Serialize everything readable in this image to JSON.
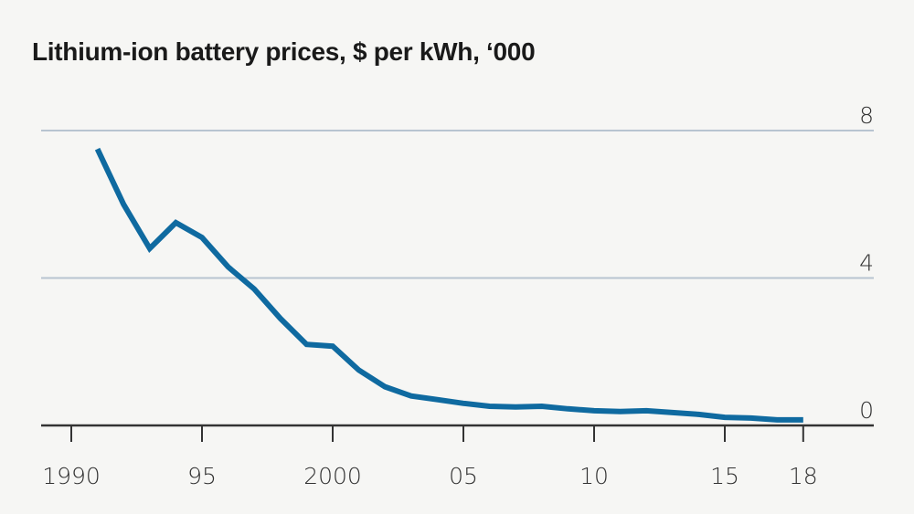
{
  "chart_data": {
    "type": "line",
    "title": "Lithium-ion battery prices, $ per kWh, ‘000",
    "xlabel": "",
    "ylabel": "",
    "xlim": [
      1988,
      2021
    ],
    "ylim": [
      0,
      8
    ],
    "grid": true,
    "y_axis_side": "right",
    "y_ticks": [
      0,
      4,
      8
    ],
    "y_tick_labels": [
      "0",
      "4",
      "8"
    ],
    "x_ticks": [
      1990,
      1995,
      2000,
      2005,
      2010,
      2015,
      2018
    ],
    "x_tick_labels": [
      "1990",
      "95",
      "2000",
      "05",
      "10",
      "15",
      "18"
    ],
    "series": [
      {
        "name": "Lithium-ion battery price",
        "color": "#0f6aa0",
        "x": [
          1991,
          1992,
          1993,
          1994,
          1995,
          1996,
          1997,
          1998,
          1999,
          2000,
          2001,
          2002,
          2003,
          2004,
          2005,
          2006,
          2007,
          2008,
          2009,
          2010,
          2011,
          2012,
          2013,
          2014,
          2015,
          2016,
          2017,
          2018
        ],
        "values": [
          7.5,
          6.0,
          4.8,
          5.5,
          5.1,
          4.3,
          3.7,
          2.9,
          2.2,
          2.15,
          1.5,
          1.05,
          0.8,
          0.7,
          0.6,
          0.52,
          0.5,
          0.52,
          0.45,
          0.4,
          0.38,
          0.4,
          0.35,
          0.3,
          0.22,
          0.2,
          0.15,
          0.15
        ]
      }
    ]
  },
  "colors": {
    "background": "#f6f6f4",
    "gridline": "#b8c4d0",
    "axis": "#333333",
    "line": "#0f6aa0"
  }
}
